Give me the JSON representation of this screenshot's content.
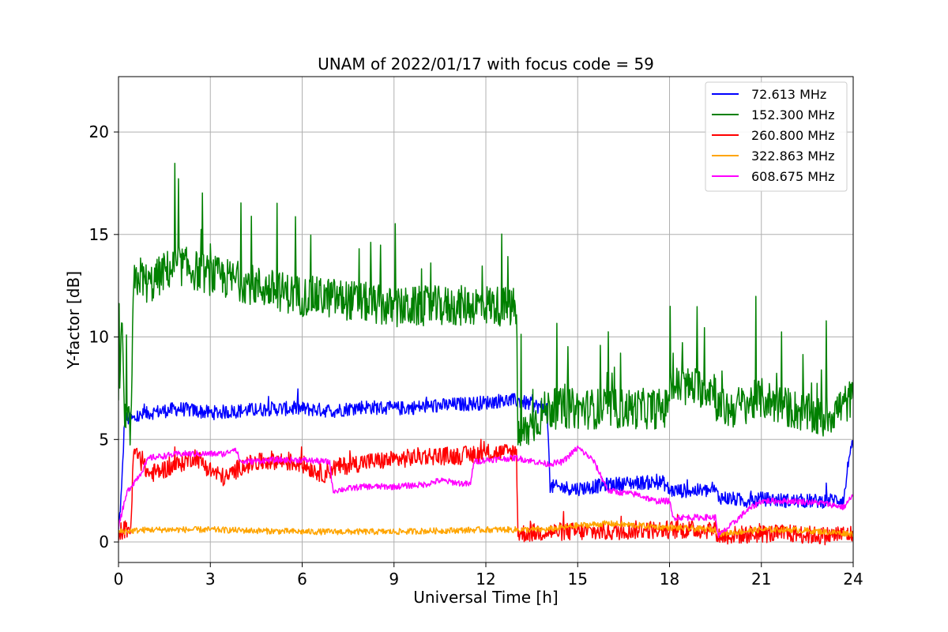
{
  "chart_data": {
    "type": "line",
    "title": "UNAM of 2022/01/17 with focus code = 59",
    "xlabel": "Universal Time [h]",
    "ylabel": "Y-factor [dB]",
    "xlim": [
      0,
      24
    ],
    "ylim": [
      -1,
      22.7
    ],
    "xticks": [
      0,
      3,
      6,
      9,
      12,
      15,
      18,
      21,
      24
    ],
    "yticks": [
      0,
      5,
      10,
      15,
      20
    ],
    "grid": true,
    "legend_position": "top-right",
    "series": [
      {
        "name": "  72.613 MHz",
        "color": "#0000ff",
        "points": [
          [
            0,
            0.5
          ],
          [
            0.1,
            2.5
          ],
          [
            0.2,
            6.0
          ],
          [
            0.5,
            6.0
          ],
          [
            1,
            6.3
          ],
          [
            2,
            6.5
          ],
          [
            3,
            6.3
          ],
          [
            4,
            6.4
          ],
          [
            5,
            6.5
          ],
          [
            6,
            6.5
          ],
          [
            7,
            6.4
          ],
          [
            8,
            6.6
          ],
          [
            9,
            6.5
          ],
          [
            10,
            6.6
          ],
          [
            11,
            6.7
          ],
          [
            12,
            6.8
          ],
          [
            12.5,
            6.9
          ],
          [
            13,
            6.9
          ],
          [
            13.5,
            6.7
          ],
          [
            14,
            6.5
          ],
          [
            14.1,
            2.7
          ],
          [
            15,
            2.6
          ],
          [
            16,
            2.8
          ],
          [
            17,
            2.9
          ],
          [
            17.8,
            2.9
          ],
          [
            18,
            2.5
          ],
          [
            19.5,
            2.5
          ],
          [
            19.6,
            2.2
          ],
          [
            20.5,
            2.0
          ],
          [
            21,
            2.1
          ],
          [
            22,
            2.0
          ],
          [
            23,
            2.0
          ],
          [
            23.7,
            2.1
          ],
          [
            23.9,
            4.6
          ],
          [
            24,
            4.6
          ]
        ],
        "noise": 0.35
      },
      {
        "name": "152.300 MHz",
        "color": "#008000",
        "points": [
          [
            0,
            6.0
          ],
          [
            0.1,
            11.0
          ],
          [
            0.2,
            6.0
          ],
          [
            0.4,
            5.5
          ],
          [
            0.5,
            12.5
          ],
          [
            0.7,
            13.0
          ],
          [
            1,
            12.5
          ],
          [
            1.5,
            13.2
          ],
          [
            2,
            13.5
          ],
          [
            3,
            13.0
          ],
          [
            4,
            12.7
          ],
          [
            5,
            12.3
          ],
          [
            6,
            12.0
          ],
          [
            7,
            11.9
          ],
          [
            8,
            11.7
          ],
          [
            9,
            11.4
          ],
          [
            10,
            11.5
          ],
          [
            11,
            11.5
          ],
          [
            12,
            11.6
          ],
          [
            13,
            11.4
          ],
          [
            13.05,
            5.0
          ],
          [
            14,
            6.5
          ],
          [
            15,
            6.5
          ],
          [
            16,
            6.5
          ],
          [
            17,
            6.5
          ],
          [
            17.9,
            6.5
          ],
          [
            18,
            7.6
          ],
          [
            19.5,
            7.5
          ],
          [
            19.55,
            6.5
          ],
          [
            20,
            6.5
          ],
          [
            21,
            7.0
          ],
          [
            22,
            6.5
          ],
          [
            23,
            6.0
          ],
          [
            24,
            7.0
          ]
        ],
        "noise": 1.0
      },
      {
        "name": "260.800 MHz",
        "color": "#ff0000",
        "points": [
          [
            0,
            0.5
          ],
          [
            0.4,
            0.7
          ],
          [
            0.5,
            4.5
          ],
          [
            0.7,
            4.0
          ],
          [
            1,
            3.3
          ],
          [
            2,
            3.8
          ],
          [
            2.5,
            4.2
          ],
          [
            3,
            3.5
          ],
          [
            3.5,
            3.1
          ],
          [
            4,
            3.7
          ],
          [
            5,
            4.0
          ],
          [
            6,
            3.8
          ],
          [
            6.7,
            3.3
          ],
          [
            7,
            3.6
          ],
          [
            8,
            3.9
          ],
          [
            9,
            4.0
          ],
          [
            10,
            4.2
          ],
          [
            11,
            4.2
          ],
          [
            12,
            4.3
          ],
          [
            13,
            4.4
          ],
          [
            13.05,
            0.4
          ],
          [
            14,
            0.5
          ],
          [
            15,
            0.5
          ],
          [
            16,
            0.5
          ],
          [
            17,
            0.6
          ],
          [
            18,
            0.6
          ],
          [
            19.5,
            0.6
          ],
          [
            19.6,
            0.3
          ],
          [
            21,
            0.4
          ],
          [
            22,
            0.4
          ],
          [
            23,
            0.3
          ],
          [
            24,
            0.4
          ]
        ],
        "noise": 0.45
      },
      {
        "name": "322.863 MHz",
        "color": "#ffa500",
        "points": [
          [
            0,
            0.5
          ],
          [
            1,
            0.6
          ],
          [
            3,
            0.6
          ],
          [
            6,
            0.5
          ],
          [
            9,
            0.5
          ],
          [
            12,
            0.6
          ],
          [
            13,
            0.6
          ],
          [
            14,
            0.6
          ],
          [
            15,
            0.8
          ],
          [
            16,
            0.9
          ],
          [
            17,
            0.8
          ],
          [
            18,
            0.7
          ],
          [
            19.5,
            0.6
          ],
          [
            19.6,
            0.4
          ],
          [
            21,
            0.6
          ],
          [
            22,
            0.6
          ],
          [
            23,
            0.5
          ],
          [
            24,
            0.4
          ]
        ],
        "noise": 0.15
      },
      {
        "name": "608.675 MHz",
        "color": "#ff00ff",
        "points": [
          [
            0,
            0.8
          ],
          [
            0.3,
            2.5
          ],
          [
            0.7,
            3.3
          ],
          [
            1,
            4.1
          ],
          [
            1.5,
            4.2
          ],
          [
            2,
            4.3
          ],
          [
            3,
            4.3
          ],
          [
            3.5,
            4.3
          ],
          [
            3.8,
            4.6
          ],
          [
            4,
            3.9
          ],
          [
            5,
            4.0
          ],
          [
            6,
            4.0
          ],
          [
            6.9,
            3.9
          ],
          [
            7,
            2.5
          ],
          [
            8,
            2.7
          ],
          [
            9,
            2.7
          ],
          [
            10,
            2.8
          ],
          [
            10.5,
            3.0
          ],
          [
            11,
            2.9
          ],
          [
            11.5,
            2.8
          ],
          [
            11.6,
            3.9
          ],
          [
            12,
            4.0
          ],
          [
            13,
            4.1
          ],
          [
            14,
            3.8
          ],
          [
            14.5,
            3.9
          ],
          [
            15,
            4.6
          ],
          [
            15.5,
            4.0
          ],
          [
            16,
            2.5
          ],
          [
            17,
            2.3
          ],
          [
            17.5,
            2.0
          ],
          [
            18,
            2.0
          ],
          [
            18.1,
            1.2
          ],
          [
            19.5,
            1.2
          ],
          [
            19.6,
            0.3
          ],
          [
            20,
            0.8
          ],
          [
            20.5,
            1.5
          ],
          [
            21,
            2.0
          ],
          [
            22,
            2.0
          ],
          [
            23,
            1.9
          ],
          [
            23.7,
            1.7
          ],
          [
            24,
            2.3
          ]
        ],
        "noise": 0.15
      }
    ]
  }
}
